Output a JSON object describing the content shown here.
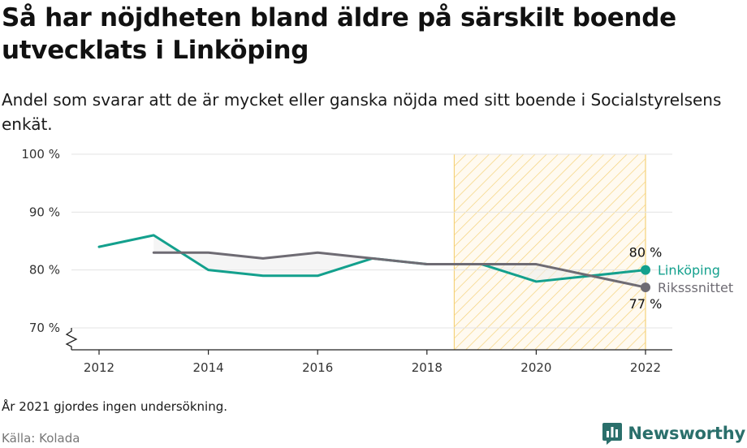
{
  "title": "Så har nöjdheten bland äldre på särskilt boende utvecklats i Linköping",
  "subtitle": "Andel som svarar att de är mycket eller ganska nöjda med sitt boende i Socialstyrelsens enkät.",
  "note": "År 2021 gjordes ingen undersökning.",
  "source": "Källa: Kolada",
  "brand": {
    "name": "Newsworthy",
    "icon": "newsworthy-logo-icon"
  },
  "chart_data": {
    "type": "line",
    "xlim": [
      2012,
      2022
    ],
    "ylim": [
      70,
      100
    ],
    "x_ticks": [
      2012,
      2014,
      2016,
      2018,
      2020,
      2022
    ],
    "x_tick_labels": [
      "2012",
      "2014",
      "2016",
      "2018",
      "2020",
      "2022"
    ],
    "y_ticks": [
      70,
      80,
      90,
      100
    ],
    "y_tick_labels": [
      "70 %",
      "80 %",
      "90 %",
      "100 %"
    ],
    "grid": true,
    "y_axis_break": true,
    "highlight_range": [
      2018.5,
      2022
    ],
    "series": [
      {
        "name": "Linköping",
        "color": "#13a08d",
        "x": [
          2012,
          2013,
          2014,
          2015,
          2016,
          2017,
          2018,
          2019,
          2020,
          2022
        ],
        "values": [
          84,
          86,
          80,
          79,
          79,
          82,
          81,
          81,
          78,
          80
        ],
        "end_label": "80 %"
      },
      {
        "name": "Riksssnittet",
        "color": "#6e6b73",
        "x": [
          2013,
          2014,
          2015,
          2016,
          2017,
          2018,
          2019,
          2020,
          2022
        ],
        "values": [
          83,
          83,
          82,
          83,
          82,
          81,
          81,
          81,
          77
        ],
        "end_label": "77 %"
      }
    ]
  }
}
